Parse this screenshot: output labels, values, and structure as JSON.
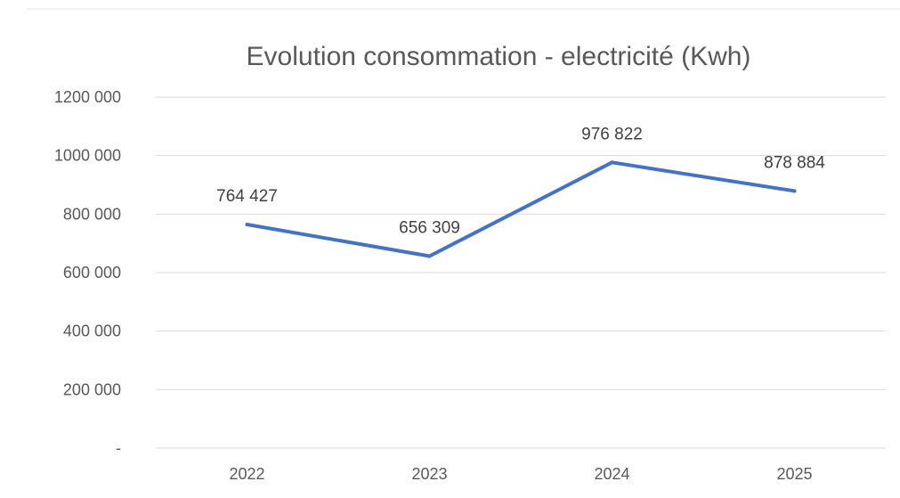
{
  "chart_data": {
    "type": "line",
    "title": "Evolution consommation - electricité (Kwh)",
    "xlabel": "",
    "ylabel": "",
    "categories": [
      "2022",
      "2023",
      "2024",
      "2025"
    ],
    "series": [
      {
        "values": [
          764427,
          656309,
          976822,
          878884
        ],
        "data_labels": [
          "764 427",
          "656 309",
          "976 822",
          "878 884"
        ],
        "color": "#4472c4"
      }
    ],
    "ylim": [
      0,
      1200000
    ],
    "y_ticks": [
      0,
      200000,
      400000,
      600000,
      800000,
      1000000,
      1200000
    ],
    "y_tick_labels": [
      "-",
      "200 000",
      "400 000",
      "600 000",
      "800 000",
      "1000 000",
      "1200 000"
    ],
    "grid": true,
    "legend": "none"
  },
  "colors": {
    "gridline": "#d9d9d9",
    "text": "#595959",
    "line": "#4472c4"
  }
}
